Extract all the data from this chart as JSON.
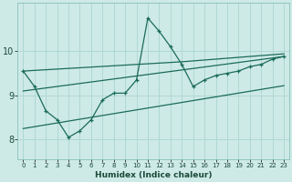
{
  "xlabel": "Humidex (Indice chaleur)",
  "x_ticks": [
    0,
    1,
    2,
    3,
    4,
    5,
    6,
    7,
    8,
    9,
    10,
    11,
    12,
    13,
    14,
    15,
    16,
    17,
    18,
    19,
    20,
    21,
    22,
    23
  ],
  "xlim": [
    -0.5,
    23.5
  ],
  "ylim": [
    7.55,
    11.1
  ],
  "y_ticks": [
    8,
    9,
    10
  ],
  "background_color": "#ceeae6",
  "grid_color": "#afd8d2",
  "line_color": "#1a6b5a",
  "line1_x": [
    0,
    1,
    2,
    3,
    4,
    5,
    6,
    7,
    8,
    9,
    10,
    11,
    12,
    13,
    14,
    15,
    16,
    17,
    18,
    19,
    20,
    21,
    22,
    23
  ],
  "line1_y": [
    9.55,
    9.2,
    8.65,
    8.45,
    8.05,
    8.2,
    8.45,
    8.9,
    9.05,
    9.05,
    9.35,
    10.75,
    10.45,
    10.1,
    9.7,
    9.2,
    9.35,
    9.45,
    9.5,
    9.55,
    9.65,
    9.7,
    9.82,
    9.88
  ],
  "line2_x": [
    0,
    23
  ],
  "line2_y": [
    9.1,
    9.88
  ],
  "line3_x": [
    0,
    23
  ],
  "line3_y": [
    8.25,
    9.22
  ],
  "line4_x": [
    0,
    14,
    15,
    16,
    17,
    18,
    19,
    20,
    21,
    22,
    23
  ],
  "line4_y": [
    9.55,
    9.76,
    9.78,
    9.8,
    9.82,
    9.84,
    9.86,
    9.88,
    9.9,
    9.92,
    9.94
  ]
}
